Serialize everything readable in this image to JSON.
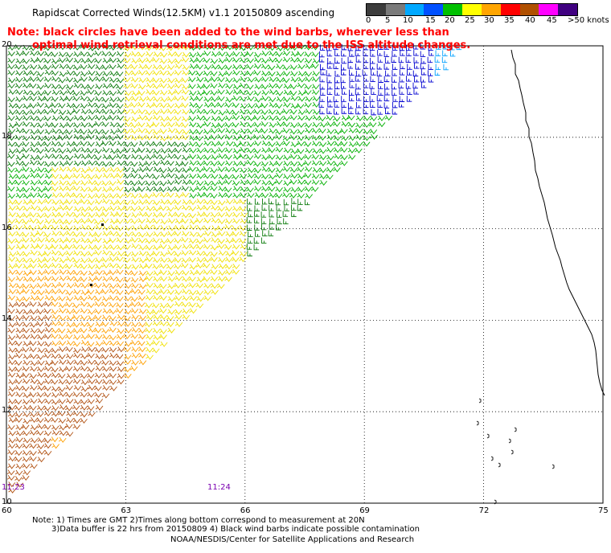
{
  "title": "Rapidscat Corrected Winds(12.5KM) v1.1 20150809 ascending",
  "note_line1": "Note: black circles have been added to the wind barbs, wherever less than",
  "note_line2": "optimal wind retrieval conditions are met due to the ISS altitude changes.",
  "legend": {
    "labels": [
      "0",
      "5",
      "10",
      "15",
      "20",
      "25",
      "30",
      "35",
      "40",
      "45",
      ">50 knots"
    ],
    "colors": [
      "#3c3c3c",
      "#7a7a7a",
      "#00a8ff",
      "#0050ff",
      "#00c000",
      "#ffff00",
      "#ffa500",
      "#ff0000",
      "#b05000",
      "#ff00ff",
      "#400080"
    ]
  },
  "axes": {
    "x_labels": [
      "60",
      "63",
      "66",
      "69",
      "72",
      "75"
    ],
    "y_labels": [
      "10",
      "12",
      "14",
      "16",
      "18",
      "20"
    ]
  },
  "times": {
    "left": "11:23",
    "center": "11:24"
  },
  "footnote1": "Note: 1) Times are GMT 2)Times along bottom correspond to measurement at 20N",
  "footnote2": "3)Data buffer is 22 hrs from 20150809 4) Black wind barbs indicate possible contamination",
  "footer": "NOAA/NESDIS/Center for Satellite Applications and Research",
  "map_data": {
    "lon_range": [
      60,
      75
    ],
    "lat_range": [
      10,
      20
    ],
    "grid_lons": [
      63,
      66,
      69,
      72
    ],
    "grid_lats": [
      12,
      14,
      16,
      18
    ],
    "swath": "northeast edge runs from about 71.5E 20N to about 60.5E 10N",
    "colors": {
      "blue": "#0000d0",
      "cyan": "#00a0ff",
      "green": "#00b000",
      "darkgreen": "#0a7a0a",
      "yellow": "#f0e000",
      "orange": "#ffa000",
      "brown": "#b05010",
      "purple": "#7a00b0"
    }
  }
}
